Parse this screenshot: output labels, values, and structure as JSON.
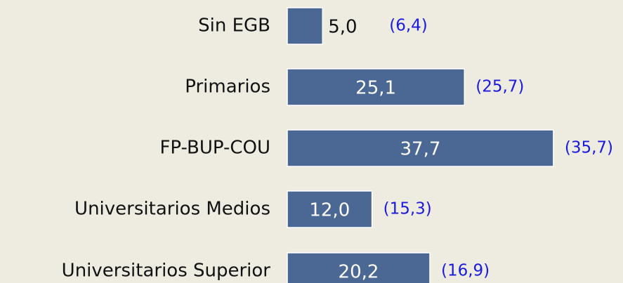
{
  "chart_data": {
    "type": "bar",
    "orientation": "horizontal",
    "categories": [
      "Sin EGB",
      "Primarios",
      "FP-BUP-COU",
      "Universitarios Medios",
      "Universitarios Superior"
    ],
    "values": [
      5.0,
      25.1,
      37.7,
      12.0,
      20.2
    ],
    "value_labels": [
      "5,0",
      "25,1",
      "37,7",
      "12,0",
      "20,2"
    ],
    "annotations": [
      "(6,4)",
      "(25,7)",
      "(35,7)",
      "(15,3)",
      "(16,9)"
    ],
    "color": "#4a6893"
  }
}
